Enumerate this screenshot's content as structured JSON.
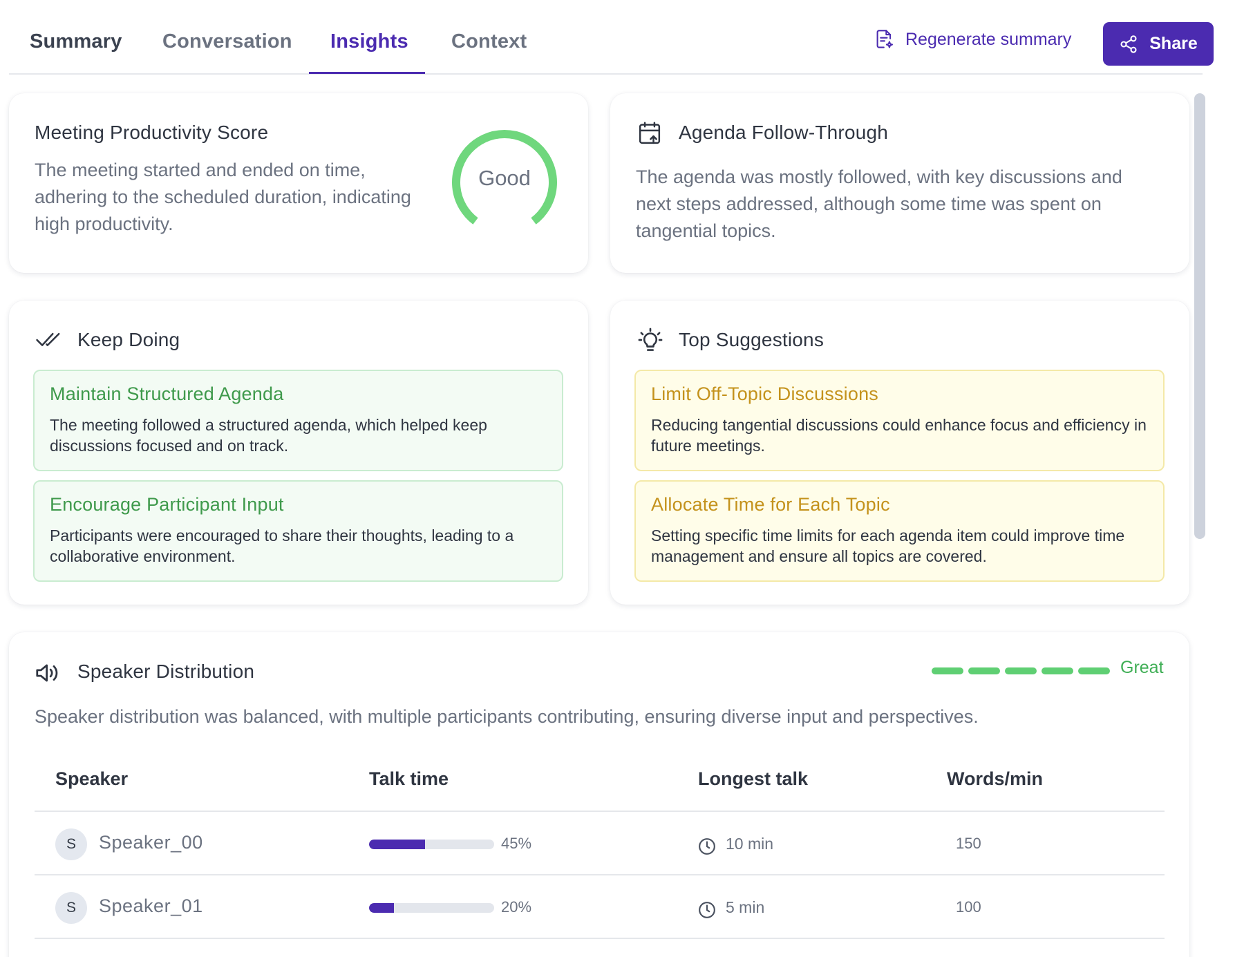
{
  "tabs": [
    {
      "label": "Summary"
    },
    {
      "label": "Conversation"
    },
    {
      "label": "Insights",
      "active": true
    },
    {
      "label": "Context"
    }
  ],
  "actions": {
    "regenerate_label": "Regenerate summary",
    "share_label": "Share"
  },
  "colors": {
    "accent": "#4b2bb0",
    "good_green": "#5fcf73",
    "keep_title": "#3f9a4c",
    "suggestion_title": "#c4921c"
  },
  "productivity": {
    "title": "Meeting Productivity Score",
    "text": "The meeting started and ended on time, adhering to the scheduled duration, indicating high productivity.",
    "score_label": "Good"
  },
  "agenda": {
    "title": "Agenda Follow-Through",
    "icon": "calendar-arrow-icon",
    "text": "The agenda was mostly followed, with key discussions and next steps addressed, although some time was spent on tangential topics."
  },
  "keep_doing": {
    "title": "Keep Doing",
    "icon": "double-check-icon",
    "items": [
      {
        "title": "Maintain Structured Agenda",
        "text": "The meeting followed a structured agenda, which helped keep discussions focused and on track."
      },
      {
        "title": "Encourage Participant Input",
        "text": "Participants were encouraged to share their thoughts, leading to a collaborative environment."
      }
    ]
  },
  "suggestions": {
    "title": "Top Suggestions",
    "icon": "lightbulb-icon",
    "items": [
      {
        "title": "Limit Off-Topic Discussions",
        "text": "Reducing tangential discussions could enhance focus and efficiency in future meetings."
      },
      {
        "title": "Allocate Time for Each Topic",
        "text": "Setting specific time limits for each agenda item could improve time management and ensure all topics are covered."
      }
    ]
  },
  "speaker_distribution": {
    "title": "Speaker Distribution",
    "icon": "speaker-icon",
    "rating_label": "Great",
    "rating_level": 5,
    "rating_max": 5,
    "text": "Speaker distribution was balanced, with multiple participants contributing, ensuring diverse input and perspectives.",
    "columns": [
      "Speaker",
      "Talk time",
      "Longest talk",
      "Words/min"
    ],
    "rows": [
      {
        "initial": "S",
        "name": "Speaker_00",
        "talk_pct": 45,
        "talk_label": "45%",
        "longest": "10 min",
        "wpm": "150"
      },
      {
        "initial": "S",
        "name": "Speaker_01",
        "talk_pct": 20,
        "talk_label": "20%",
        "longest": "5 min",
        "wpm": "100"
      }
    ]
  }
}
